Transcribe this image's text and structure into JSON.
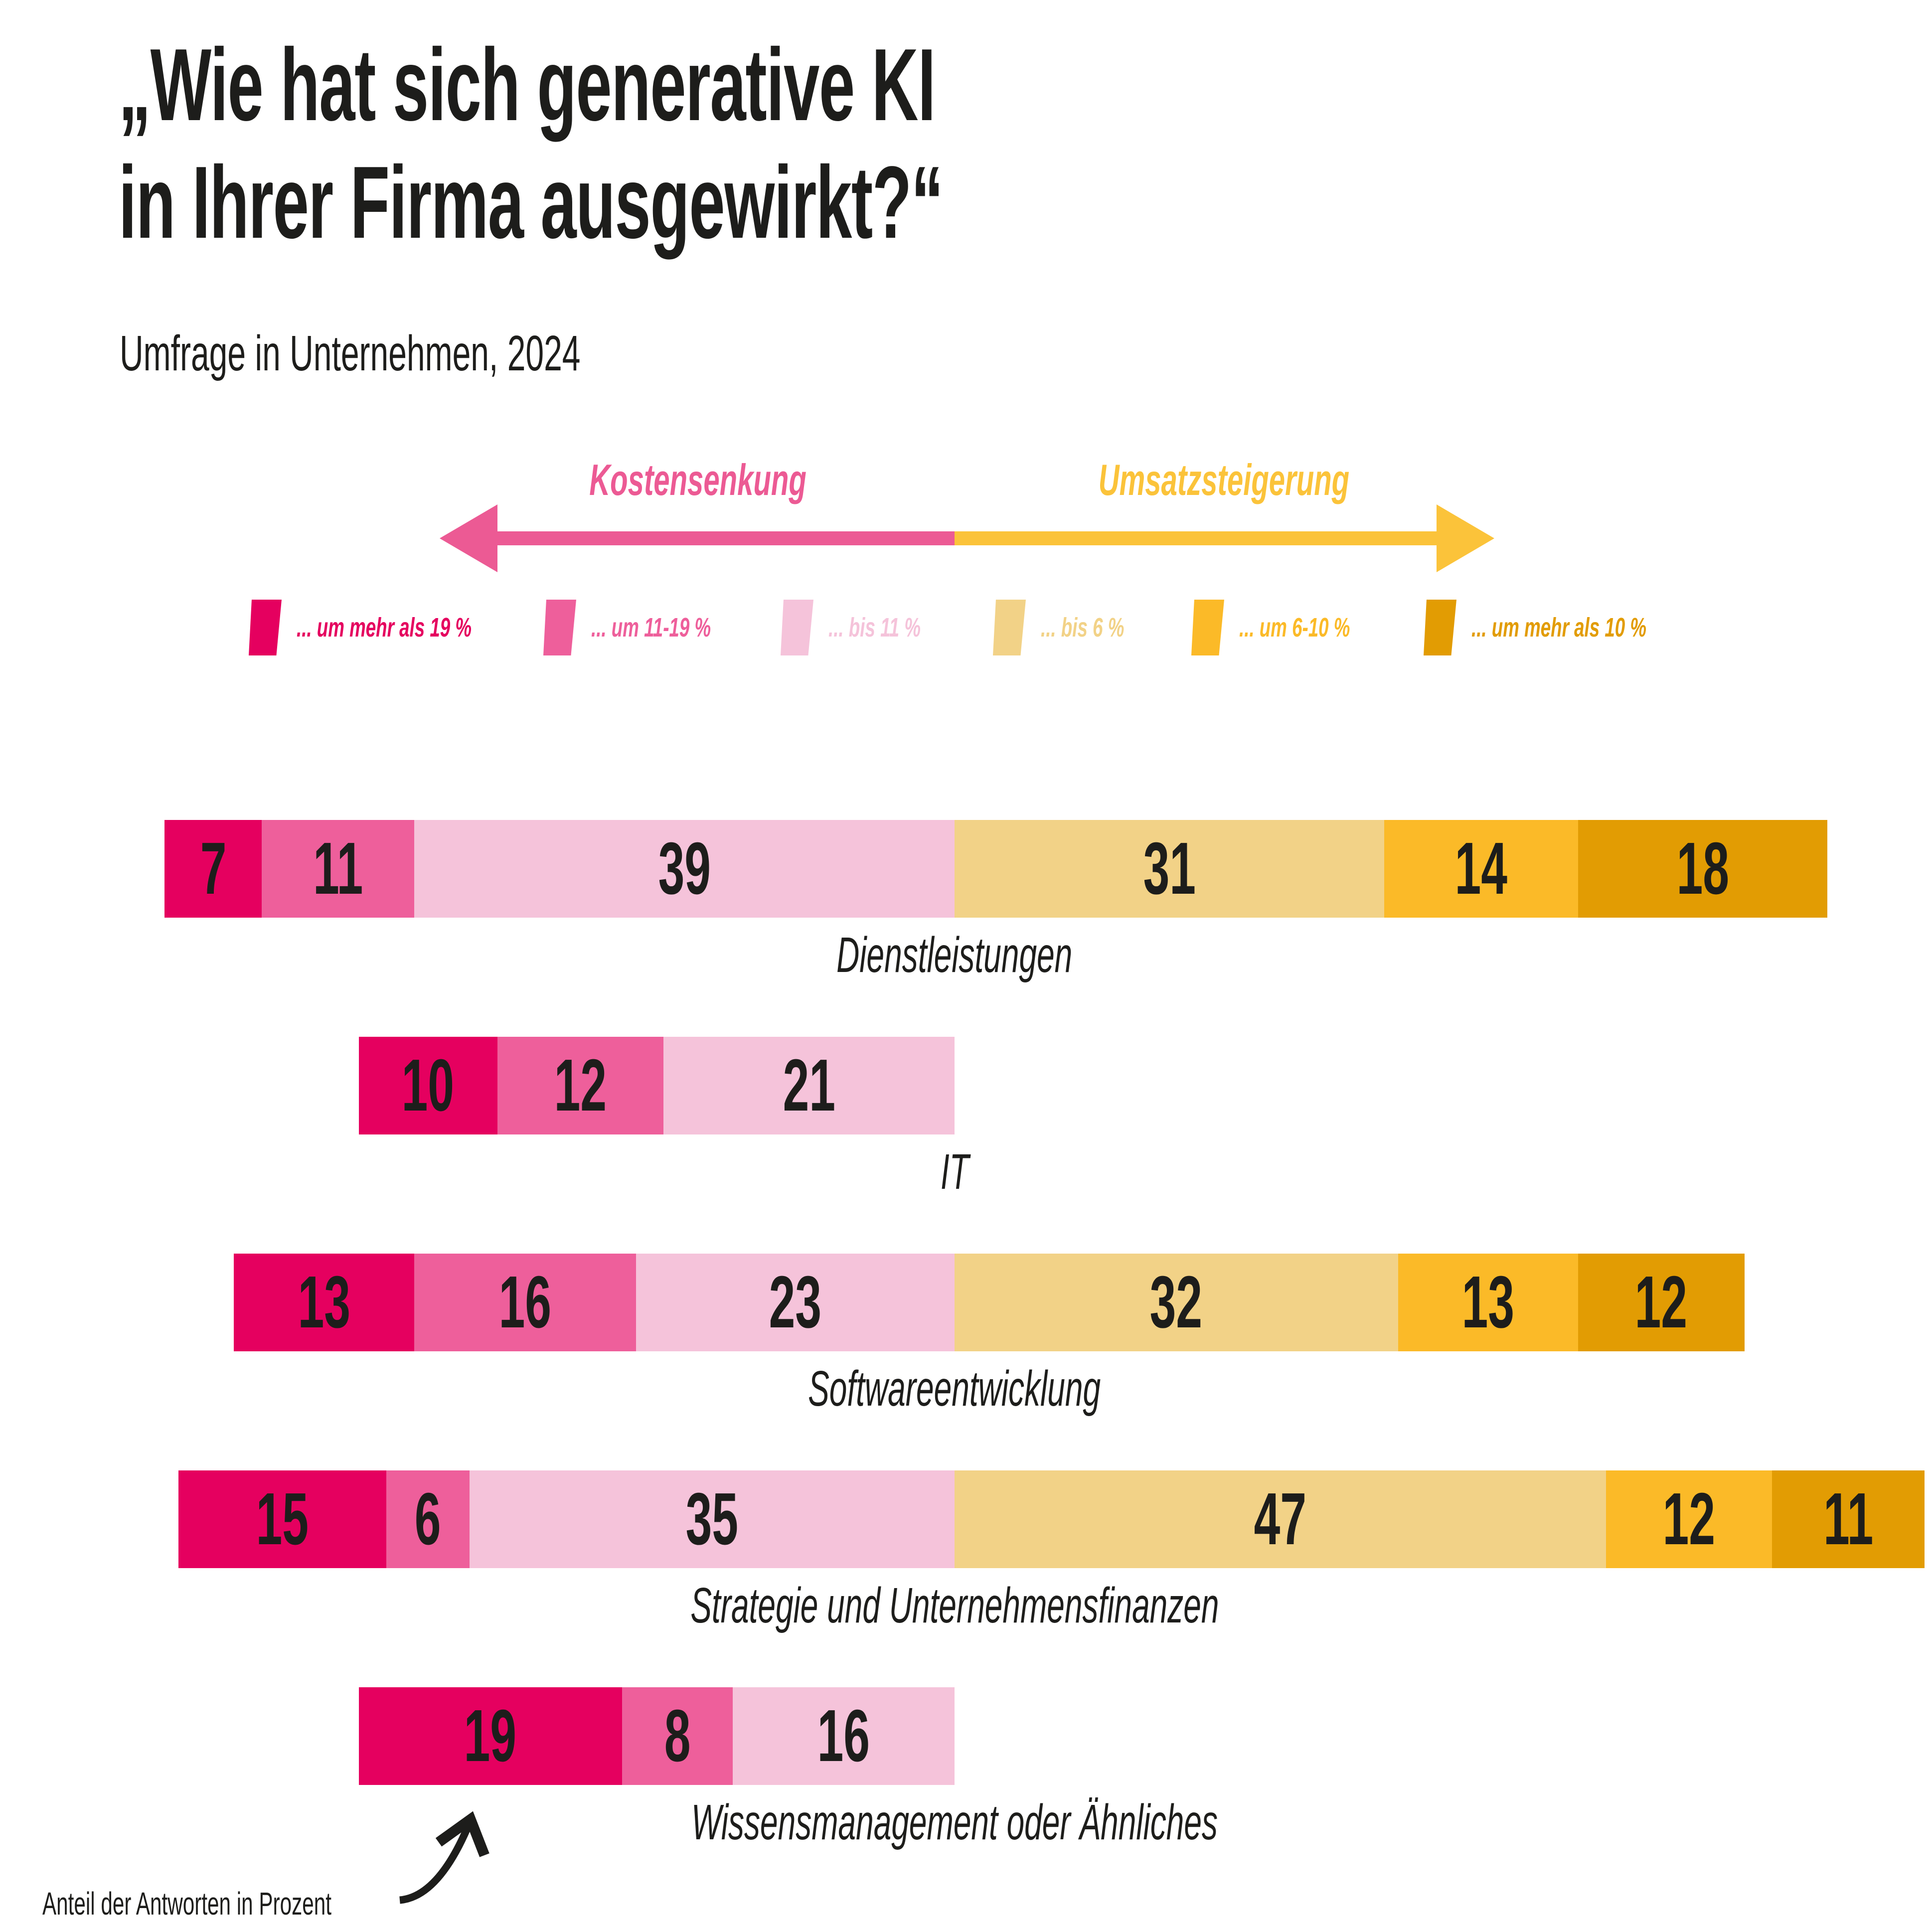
{
  "page": {
    "background": "#ffffff",
    "text_color": "#1d1d1b"
  },
  "header": {
    "title_line1": "„Wie hat sich generative KI",
    "title_line2": "in Ihrer Firma ausgewirkt?“",
    "subtitle": "Umfrage in Unternehmen, 2024"
  },
  "axis": {
    "left_label": "Kostensenkung",
    "right_label": "Umsatzsteigerung",
    "left_color": "#ec5a94",
    "right_color": "#fbc33a"
  },
  "legend": {
    "items": [
      {
        "label": "... um mehr als 19 %",
        "color": "#e5005f"
      },
      {
        "label": "... um 11-19 %",
        "color": "#ee5f9b"
      },
      {
        "label": "... bis 11 %",
        "color": "#f5c3da"
      },
      {
        "label": "... bis 6 %",
        "color": "#f2d287"
      },
      {
        "label": "... um 6-10 %",
        "color": "#fbba28"
      },
      {
        "label": "... um mehr als 10 %",
        "color": "#e29c03"
      }
    ]
  },
  "chart_data": {
    "type": "bar",
    "variant": "diverging-stacked-horizontal",
    "title": "„Wie hat sich generative KI in Ihrer Firma ausgewirkt?“",
    "subtitle": "Umfrage in Unternehmen, 2024",
    "units": "Anteil der Antworten in Prozent",
    "direction_labels": {
      "left": "Kostensenkung",
      "right": "Umsatzsteigerung"
    },
    "buckets": [
      "... um mehr als 19 %",
      "... um 11-19 %",
      "... bis 11 %",
      "... bis 6 %",
      "... um 6-10 %",
      "... um mehr als 10 %"
    ],
    "bucket_colors": [
      "#e5005f",
      "#ee5f9b",
      "#f5c3da",
      "#f2d287",
      "#fbba28",
      "#e29c03"
    ],
    "bucket_sides": [
      "left",
      "left",
      "left",
      "right",
      "right",
      "right"
    ],
    "categories": [
      "Dienstleistungen",
      "IT",
      "Softwareentwicklung",
      "Strategie und Unternehmensfinanzen",
      "Wissensmanagement oder Ähnliches"
    ],
    "values": [
      [
        7,
        11,
        39,
        31,
        14,
        18
      ],
      [
        10,
        12,
        21,
        null,
        null,
        null
      ],
      [
        13,
        16,
        23,
        32,
        13,
        12
      ],
      [
        15,
        6,
        35,
        47,
        12,
        11
      ],
      [
        19,
        8,
        16,
        null,
        null,
        null
      ]
    ],
    "legend_position": "top",
    "grid": false
  },
  "annotation": {
    "text": "Anteil der Antworten in Prozent"
  }
}
